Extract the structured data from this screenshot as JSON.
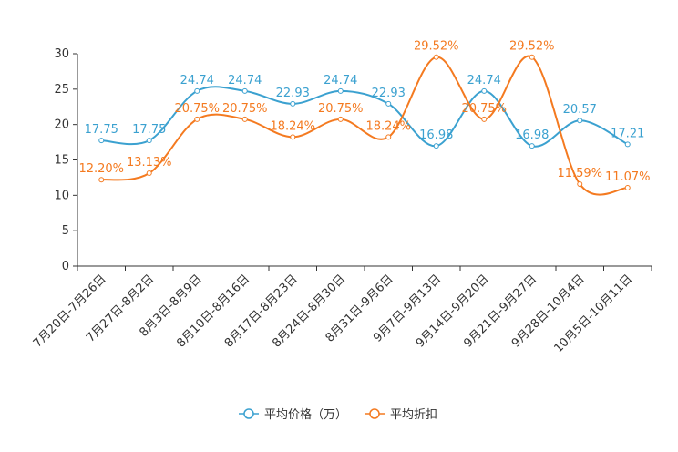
{
  "chart_data": {
    "type": "line",
    "categories": [
      "7月20日-7月26日",
      "7月27日-8月2日",
      "8月3日-8月9日",
      "8月10日-8月16日",
      "8月17日-8月23日",
      "8月24日-8月30日",
      "8月31日-9月6日",
      "9月7日-9月13日",
      "9月14日-9月20日",
      "9月21日-9月27日",
      "9月28日-10月4日",
      "10月5日-10月11日"
    ],
    "ylim": [
      0,
      30
    ],
    "yticks": [
      0,
      5,
      10,
      15,
      20,
      25,
      30
    ],
    "series": [
      {
        "name": "平均价格（万）",
        "color": "#3ba1d0",
        "values": [
          17.75,
          17.75,
          24.74,
          24.74,
          22.93,
          24.74,
          22.93,
          16.98,
          24.74,
          16.98,
          20.57,
          17.21
        ],
        "labels": [
          "17.75",
          "17.75",
          "24.74",
          "24.74",
          "22.93",
          "24.74",
          "22.93",
          "16.98",
          "24.74",
          "16.98",
          "20.57",
          "17.21"
        ]
      },
      {
        "name": "平均折扣",
        "color": "#f47a20",
        "values": [
          12.2,
          13.13,
          20.75,
          20.75,
          18.24,
          20.75,
          18.24,
          29.52,
          20.75,
          29.52,
          11.59,
          11.07
        ],
        "labels": [
          "12.20%",
          "13.13%",
          "20.75%",
          "20.75%",
          "18.24%",
          "20.75%",
          "18.24%",
          "29.52%",
          "20.75%",
          "29.52%",
          "11.59%",
          "11.07%"
        ]
      }
    ],
    "grid": false,
    "legend": "bottom-center"
  }
}
